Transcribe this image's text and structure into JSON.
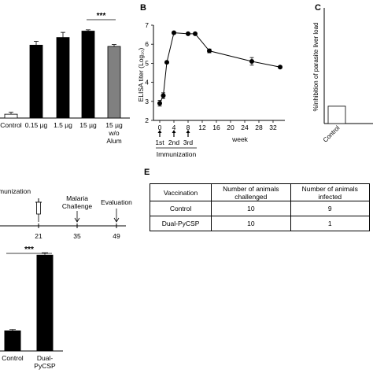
{
  "panels": {
    "B": "B",
    "C": "C",
    "E": "E"
  },
  "chart_data": [
    {
      "type": "bar",
      "panel": "A",
      "categories": [
        "Control",
        "0.15 µg",
        "1.5 µg",
        "15 µg",
        "15 µg\nw/o\nAlum"
      ],
      "values": [
        0.3,
        5.7,
        6.3,
        6.8,
        5.6
      ],
      "errors": [
        0.15,
        0.3,
        0.4,
        0.1,
        0.15
      ],
      "colors": [
        "#ffffff",
        "#000000",
        "#000000",
        "#000000",
        "#808080"
      ],
      "ylim": [
        0,
        8
      ],
      "annotations": [
        {
          "text": "***",
          "from": 3,
          "to": 4
        }
      ]
    },
    {
      "type": "line",
      "panel": "B",
      "x": [
        0,
        1,
        2,
        4,
        8,
        10,
        14,
        26,
        34
      ],
      "y": [
        2.9,
        3.3,
        5.05,
        6.6,
        6.55,
        6.55,
        5.65,
        5.1,
        4.8
      ],
      "errors": [
        0.15,
        0.15,
        0.05,
        0.05,
        0.05,
        0.05,
        0.1,
        0.2,
        0.05
      ],
      "xlabel": "week",
      "ylabel": "ELISA titer (Log₁₀)",
      "xticks": [
        0,
        4,
        8,
        12,
        16,
        20,
        24,
        28,
        32
      ],
      "yticks": [
        2,
        3,
        4,
        5,
        6,
        7
      ],
      "xlim": [
        0,
        34
      ],
      "ylim": [
        2,
        7
      ],
      "immunization": {
        "title": "Immunization",
        "labels": [
          "1st",
          "2nd",
          "3rd"
        ],
        "weeks": [
          0,
          4,
          8
        ]
      }
    },
    {
      "type": "bar",
      "panel": "C",
      "ylabel": "%Inhibition of parasite liver load",
      "categories": [
        "Control"
      ],
      "values": [
        15
      ],
      "ylim": [
        0,
        100
      ]
    },
    {
      "type": "bar",
      "panel": "D",
      "categories": [
        "Control",
        "Dual-\nPyCSP"
      ],
      "values": [
        0.2,
        0.94
      ],
      "errors": [
        0.01,
        0.02
      ],
      "ylim": [
        0,
        1
      ],
      "annotations": [
        {
          "text": "***",
          "from": 0,
          "to": 1
        }
      ]
    },
    {
      "type": "table",
      "panel": "E",
      "columns": [
        "Vaccination",
        "Number of animals\nchallenged",
        "Number of animals\ninfected"
      ],
      "rows": [
        [
          "Control",
          "10",
          "9"
        ],
        [
          "Dual-PyCSP",
          "10",
          "1"
        ]
      ]
    }
  ],
  "timeline": {
    "start_label": "munization",
    "events": [
      {
        "day": "21",
        "label": ""
      },
      {
        "day": "35",
        "label": "Malaria\nChallenge"
      },
      {
        "day": "49",
        "label": "Evaluation"
      }
    ]
  }
}
